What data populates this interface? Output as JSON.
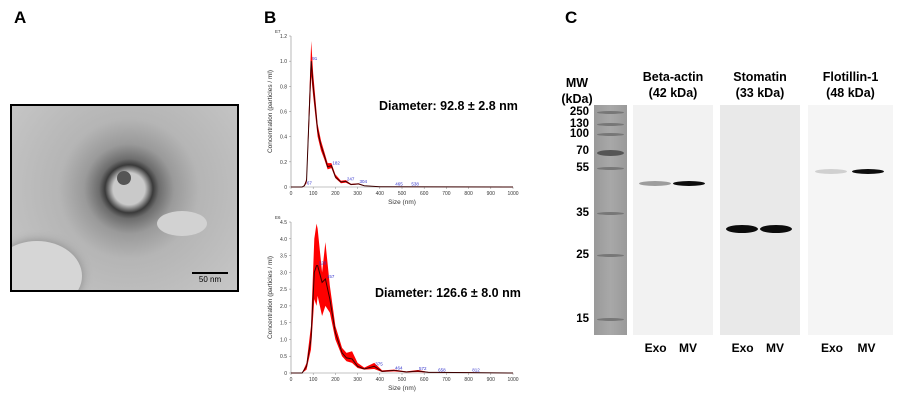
{
  "panels": {
    "a": "A",
    "b": "B",
    "c": "C"
  },
  "tem": {
    "scale_bar": "50 nm"
  },
  "chart_data": [
    {
      "type": "area",
      "exponent_label": "E7",
      "xlabel": "Size (nm)",
      "ylabel": "Concentration (particles / ml)",
      "xlim": [
        0,
        1000
      ],
      "ylim": [
        0,
        1.2
      ],
      "xticks": [
        0,
        100,
        200,
        300,
        400,
        500,
        600,
        700,
        800,
        900,
        1000
      ],
      "yticks": [
        "0",
        "0.2",
        "0.4",
        "0.6",
        "0.8",
        "1.0",
        "1.2"
      ],
      "annotation": "Diameter: 92.8 ± 2.8 nm",
      "peak_labels": [
        {
          "x": 67,
          "y": 0.01,
          "t": "67"
        },
        {
          "x": 91,
          "y": 1.0,
          "t": "91"
        },
        {
          "x": 182,
          "y": 0.17,
          "t": "182"
        },
        {
          "x": 247,
          "y": 0.045,
          "t": "247"
        },
        {
          "x": 304,
          "y": 0.025,
          "t": "304"
        },
        {
          "x": 465,
          "y": 0.005,
          "t": "465"
        },
        {
          "x": 538,
          "y": 0.005,
          "t": "538"
        }
      ],
      "x": [
        0,
        50,
        60,
        70,
        80,
        91,
        100,
        120,
        135,
        150,
        165,
        182,
        200,
        225,
        247,
        270,
        304,
        330,
        400,
        1000
      ],
      "mean": [
        0,
        0,
        0.01,
        0.05,
        0.5,
        1.0,
        0.8,
        0.45,
        0.33,
        0.25,
        0.16,
        0.17,
        0.08,
        0.04,
        0.045,
        0.02,
        0.025,
        0.01,
        0.002,
        0
      ],
      "upper": [
        0,
        0,
        0.015,
        0.07,
        0.6,
        1.16,
        0.9,
        0.5,
        0.37,
        0.28,
        0.19,
        0.19,
        0.1,
        0.05,
        0.055,
        0.025,
        0.03,
        0.012,
        0.003,
        0
      ],
      "lower": [
        0,
        0,
        0.005,
        0.03,
        0.42,
        0.88,
        0.72,
        0.4,
        0.29,
        0.22,
        0.14,
        0.15,
        0.07,
        0.03,
        0.035,
        0.015,
        0.02,
        0.008,
        0.001,
        0
      ],
      "colors": {
        "band": "#ff0000",
        "mean": "#3a0000",
        "label": "#3333cc"
      }
    },
    {
      "type": "area",
      "exponent_label": "E6",
      "xlabel": "Size (nm)",
      "ylabel": "Concentration (particles / ml)",
      "xlim": [
        0,
        1000
      ],
      "ylim": [
        0,
        4.5
      ],
      "xticks": [
        0,
        100,
        200,
        300,
        400,
        500,
        600,
        700,
        800,
        900,
        1000
      ],
      "yticks": [
        "0",
        "0.5",
        "1.0",
        "1.5",
        "2.0",
        "2.5",
        "3.0",
        "3.5",
        "4.0",
        "4.5"
      ],
      "annotation": "Diameter: 126.6 ± 8.0 nm",
      "peak_labels": [
        {
          "x": 120,
          "y": 3.2,
          "t": "120"
        },
        {
          "x": 157,
          "y": 2.8,
          "t": "157"
        },
        {
          "x": 375,
          "y": 0.2,
          "t": "375"
        },
        {
          "x": 464,
          "y": 0.08,
          "t": "464"
        },
        {
          "x": 572,
          "y": 0.06,
          "t": "572"
        },
        {
          "x": 658,
          "y": 0.02,
          "t": "658"
        },
        {
          "x": 812,
          "y": 0.01,
          "t": "812"
        }
      ],
      "x": [
        0,
        50,
        70,
        90,
        105,
        115,
        120,
        140,
        155,
        175,
        200,
        230,
        250,
        275,
        300,
        330,
        375,
        410,
        464,
        520,
        572,
        620,
        658,
        812,
        1000
      ],
      "mean": [
        0,
        0,
        0.2,
        1.0,
        3.0,
        3.2,
        3.2,
        2.7,
        2.8,
        2.2,
        1.2,
        0.6,
        0.45,
        0.42,
        0.2,
        0.12,
        0.2,
        0.05,
        0.08,
        0.03,
        0.06,
        0.02,
        0.02,
        0.01,
        0
      ],
      "upper": [
        0,
        0,
        0.3,
        1.4,
        4.0,
        4.45,
        4.3,
        3.0,
        3.9,
        2.6,
        1.4,
        0.75,
        0.6,
        0.65,
        0.3,
        0.16,
        0.3,
        0.08,
        0.1,
        0.05,
        0.09,
        0.03,
        0.03,
        0.02,
        0
      ],
      "lower": [
        0,
        0,
        0.1,
        0.7,
        2.2,
        2.0,
        2.3,
        1.7,
        2.0,
        1.8,
        1.0,
        0.5,
        0.35,
        0.3,
        0.15,
        0.1,
        0.12,
        0.03,
        0.05,
        0.02,
        0.03,
        0.01,
        0.01,
        0.005,
        0
      ],
      "colors": {
        "band": "#ff0000",
        "mean": "#3a0000",
        "label": "#3333cc"
      }
    }
  ],
  "western": {
    "mw_title": "MW",
    "mw_unit": "(kDa)",
    "markers": [
      "250",
      "130",
      "100",
      "70",
      "55",
      "35",
      "25",
      "15"
    ],
    "blots": [
      {
        "name": "Beta-actin",
        "size": "(42 kDa)",
        "lanes": [
          "Exo",
          "MV"
        ],
        "intensity": [
          0.35,
          0.95
        ]
      },
      {
        "name": "Stomatin",
        "size": "(33 kDa)",
        "lanes": [
          "Exo",
          "MV"
        ],
        "intensity": [
          0.95,
          0.95
        ]
      },
      {
        "name": "Flotillin-1",
        "size": "(48 kDa)",
        "lanes": [
          "Exo",
          "MV"
        ],
        "intensity": [
          0.15,
          0.95
        ]
      }
    ]
  }
}
